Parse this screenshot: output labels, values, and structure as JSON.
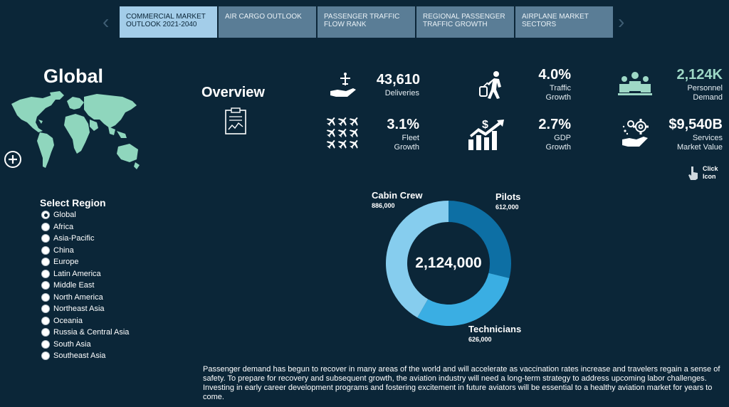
{
  "tabs": [
    {
      "label": "COMMERCIAL MARKET OUTLOOK 2021-2040",
      "active": true
    },
    {
      "label": "AIR CARGO OUTLOOK",
      "active": false
    },
    {
      "label": "PASSENGER TRAFFIC FLOW RANK",
      "active": false
    },
    {
      "label": "REGIONAL PASSENGER TRAFFIC GROWTH",
      "active": false
    },
    {
      "label": "AIRPLANE MARKET SECTORS",
      "active": false
    }
  ],
  "nav": {
    "prev": "‹",
    "next": "›"
  },
  "region_title": "Global",
  "select_region_label": "Select Region",
  "regions": [
    {
      "label": "Global",
      "selected": true
    },
    {
      "label": "Africa",
      "selected": false
    },
    {
      "label": "Asia-Pacific",
      "selected": false
    },
    {
      "label": "China",
      "selected": false
    },
    {
      "label": "Europe",
      "selected": false
    },
    {
      "label": "Latin America",
      "selected": false
    },
    {
      "label": "Middle East",
      "selected": false
    },
    {
      "label": "North America",
      "selected": false
    },
    {
      "label": "Northeast Asia",
      "selected": false
    },
    {
      "label": "Oceania",
      "selected": false
    },
    {
      "label": "Russia & Central Asia",
      "selected": false
    },
    {
      "label": "South Asia",
      "selected": false
    },
    {
      "label": "Southeast Asia",
      "selected": false
    }
  ],
  "overview_title": "Overview",
  "stats": {
    "deliveries": {
      "value": "43,610",
      "label": "Deliveries"
    },
    "traffic_growth": {
      "value": "4.0%",
      "label1": "Traffic",
      "label2": "Growth"
    },
    "personnel_demand": {
      "value": "2,124K",
      "label1": "Personnel",
      "label2": "Demand"
    },
    "fleet_growth": {
      "value": "3.1%",
      "label1": "Fleet",
      "label2": "Growth"
    },
    "gdp_growth": {
      "value": "2.7%",
      "label1": "GDP",
      "label2": "Growth"
    },
    "services_market": {
      "value": "$9,540B",
      "label1": "Services",
      "label2": "Market Value"
    }
  },
  "click_hint": {
    "line1": "Click",
    "line2": "Icon"
  },
  "donut": {
    "total": "2,124,000",
    "segments": [
      {
        "name": "Pilots",
        "count": "612,000",
        "value": 612000,
        "color": "#0d6fa4"
      },
      {
        "name": "Technicians",
        "count": "626,000",
        "value": 626000,
        "color": "#3aaee3"
      },
      {
        "name": "Cabin Crew",
        "count": "886,000",
        "value": 886000,
        "color": "#86cdee"
      }
    ]
  },
  "description": "Passenger demand has begun to recover in many areas of the world and will accelerate as vaccination rates increase and travelers regain a sense of safety. To prepare for recovery and subsequent growth, the aviation industry will need a long-term strategy to address upcoming labor challenges. Investing in early career development programs and fostering excitement in future aviators will be essential to a healthy aviation market for years to come.",
  "colors": {
    "background": "#0b2638",
    "tab": "#5a7d96",
    "tab_active": "#a3cde9",
    "map": "#8fd6bd",
    "teal_text": "#9ed8c6"
  }
}
